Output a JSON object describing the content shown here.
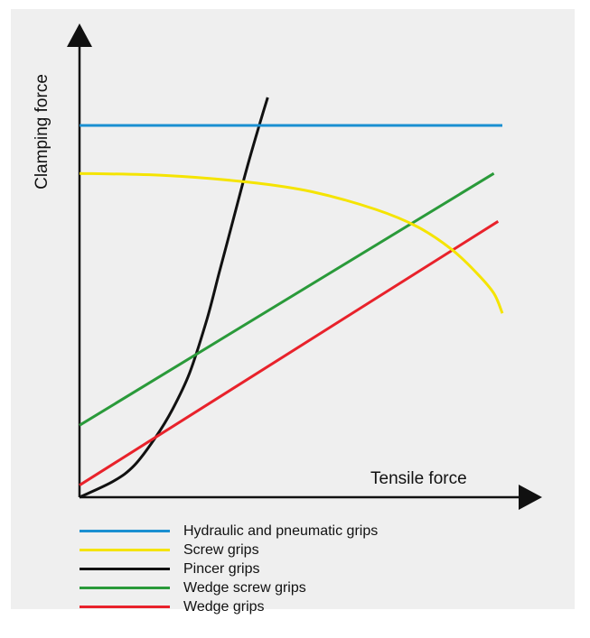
{
  "chart_data": {
    "type": "line",
    "title": "",
    "xlabel": "Tensile force",
    "ylabel": "Clamping force",
    "xlim": [
      0,
      100
    ],
    "ylim": [
      0,
      100
    ],
    "grid": false,
    "legend_position": "bottom",
    "series": [
      {
        "name": "Hydraulic and pneumatic grips",
        "color": "#1a8fd1",
        "x": [
          0,
          100
        ],
        "y": [
          93,
          93
        ]
      },
      {
        "name": "Screw grips",
        "color": "#f5e400",
        "x": [
          0,
          20,
          40,
          55,
          70,
          80,
          88,
          94,
          98,
          100
        ],
        "y": [
          81,
          80.5,
          78.8,
          76.4,
          72,
          67.6,
          62,
          56,
          51,
          46
        ]
      },
      {
        "name": "Pincer grips",
        "color": "#111111",
        "x": [
          0,
          8,
          13,
          18,
          22,
          26,
          30,
          33,
          36.5,
          39.5,
          42.5,
          44.5
        ],
        "y": [
          0,
          4,
          8,
          15,
          22,
          31,
          44,
          56,
          70,
          82,
          93,
          100
        ]
      },
      {
        "name": "Wedge screw grips",
        "color": "#2a9a3a",
        "x": [
          0,
          98
        ],
        "y": [
          18,
          81
        ]
      },
      {
        "name": "Wedge grips",
        "color": "#e8222b",
        "x": [
          0,
          99
        ],
        "y": [
          3,
          69
        ]
      }
    ]
  }
}
